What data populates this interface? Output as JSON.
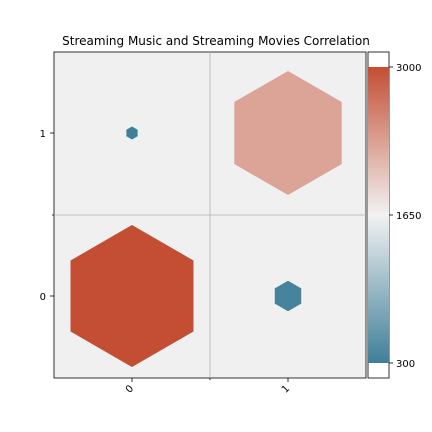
{
  "chart_data": {
    "type": "heatmap",
    "title": "Streaming Music and Streaming Movies Correlation",
    "x_categories": [
      "0",
      "1"
    ],
    "y_categories": [
      "0",
      "1"
    ],
    "cells": [
      {
        "x": "0",
        "y": "0",
        "value": 3000
      },
      {
        "x": "1",
        "y": "0",
        "value": 350
      },
      {
        "x": "0",
        "y": "1",
        "value": 300
      },
      {
        "x": "1",
        "y": "1",
        "value": 2300
      }
    ],
    "marker": "hexagon",
    "marker_size_encodes": "value",
    "grid": true,
    "colorbar": {
      "vmin": 300,
      "vmax": 3000,
      "ticks": [
        "300",
        "1650",
        "3000"
      ],
      "colors": {
        "low": "#3f7f99",
        "mid": "#f2f2f2",
        "high": "#c44e34"
      }
    },
    "plot_background": "#f0f0f0"
  }
}
